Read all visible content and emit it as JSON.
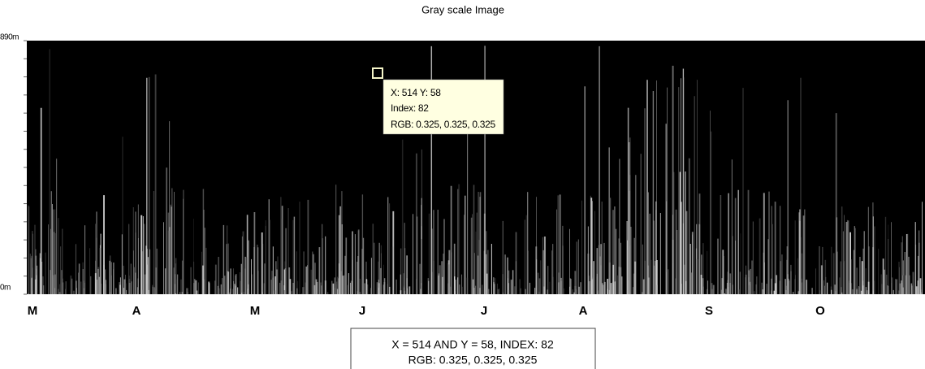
{
  "title": "Gray scale Image",
  "image": {
    "y_labels": [
      "890m",
      "0m"
    ],
    "x_labels": [
      "M",
      "A",
      "M",
      "J",
      "J",
      "A",
      "S",
      "O"
    ]
  },
  "datatip": {
    "lines": [
      "X: 514 Y: 58",
      "Index: 82",
      "RGB: 0.325, 0.325, 0.325"
    ]
  },
  "info_box": {
    "lines": [
      "X = 514 AND Y = 58, INDEX: 82",
      "RGB: 0.325, 0.325, 0.325"
    ]
  }
}
